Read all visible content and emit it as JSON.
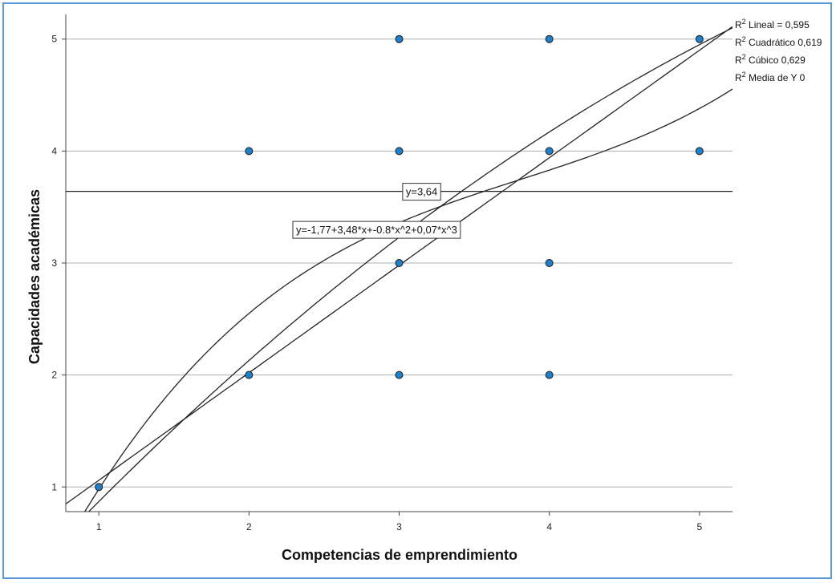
{
  "chart_data": {
    "type": "scatter",
    "xlabel": "Competencias de emprendimiento",
    "ylabel": "Capacidades académicas",
    "xlim": [
      0.78,
      5.22
    ],
    "ylim": [
      0.78,
      5.22
    ],
    "xticks": [
      1,
      2,
      3,
      4,
      5
    ],
    "yticks": [
      1,
      2,
      3,
      4,
      5
    ],
    "grid": "horizontal",
    "points": [
      {
        "x": 1,
        "y": 1
      },
      {
        "x": 2,
        "y": 2
      },
      {
        "x": 2,
        "y": 4
      },
      {
        "x": 3,
        "y": 2
      },
      {
        "x": 3,
        "y": 3
      },
      {
        "x": 3,
        "y": 4
      },
      {
        "x": 3,
        "y": 5
      },
      {
        "x": 4,
        "y": 2
      },
      {
        "x": 4,
        "y": 3
      },
      {
        "x": 4,
        "y": 4
      },
      {
        "x": 4,
        "y": 5
      },
      {
        "x": 5,
        "y": 4
      },
      {
        "x": 5,
        "y": 5
      }
    ],
    "fit_lines": [
      {
        "name": "Lineal",
        "r2_label": "Lineal = 0,595",
        "kind": "linear",
        "coef": [
          0.1,
          0.96
        ]
      },
      {
        "name": "Cuadrático",
        "r2_label": "Cuadrático 0,619",
        "kind": "quadratic",
        "coef": [
          -0.55,
          1.5,
          -0.08
        ]
      },
      {
        "name": "Cúbico",
        "r2_label": "Cúbico 0,629",
        "kind": "cubic",
        "coef": [
          -1.77,
          3.48,
          -0.8,
          0.07
        ]
      },
      {
        "name": "Media de Y",
        "r2_label": "Media de Y 0",
        "kind": "mean",
        "value": 3.64
      }
    ],
    "annotations": [
      {
        "text": "y=3,64",
        "x": 3.15,
        "y": 3.64
      },
      {
        "text": "y=-1,77+3,48*x+-0.8*x^2+0,07*x^3",
        "x": 2.85,
        "y": 3.3
      }
    ],
    "legend_placement": "right",
    "colors": {
      "marker": "#1f7fc9",
      "marker_edge": "#1a1a1a",
      "line": "#222222",
      "grid": "#b0b0b0",
      "frame": "#5b9bd5"
    }
  }
}
